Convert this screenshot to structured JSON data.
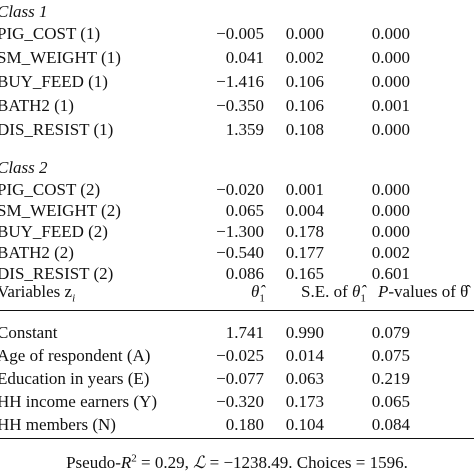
{
  "class1": {
    "title": "Class 1",
    "rows": [
      {
        "name": "PIG_COST (1)",
        "coef": "−0.005",
        "se": "0.000",
        "p": "0.000"
      },
      {
        "name": "SM_WEIGHT (1)",
        "coef": "0.041",
        "se": "0.002",
        "p": "0.000"
      },
      {
        "name": "BUY_FEED (1)",
        "coef": "−1.416",
        "se": "0.106",
        "p": "0.000"
      },
      {
        "name": "BATH2 (1)",
        "coef": "−0.350",
        "se": "0.106",
        "p": "0.001"
      },
      {
        "name": "DIS_RESIST (1)",
        "coef": "1.359",
        "se": "0.108",
        "p": "0.000"
      }
    ]
  },
  "class2": {
    "title": "Class 2",
    "rows": [
      {
        "name": "PIG_COST (2)",
        "coef": "−0.020",
        "se": "0.001",
        "p": "0.000"
      },
      {
        "name": "SM_WEIGHT (2)",
        "coef": "0.065",
        "se": "0.004",
        "p": "0.000"
      },
      {
        "name": "BUY_FEED (2)",
        "coef": "−1.300",
        "se": "0.178",
        "p": "0.000"
      },
      {
        "name": "BATH2 (2)",
        "coef": "−0.540",
        "se": "0.177",
        "p": "0.002"
      },
      {
        "name": "DIS_RESIST (2)",
        "coef": "0.086",
        "se": "0.165",
        "p": "0.601"
      }
    ]
  },
  "header": {
    "variables": "Variables z",
    "variables_sub": "i",
    "theta": "θ̂",
    "theta_sub": "1",
    "se_prefix": "S.E. of ",
    "se_theta": "θ̂",
    "se_theta_sub": "1",
    "p_label": "P",
    "p_suffix": "-values of θ̂"
  },
  "covariates": [
    {
      "name": "Constant",
      "coef": "1.741",
      "se": "0.990",
      "p": "0.079"
    },
    {
      "name": "Age of respondent (A)",
      "coef": "−0.025",
      "se": "0.014",
      "p": "0.075"
    },
    {
      "name": "Education in years (E)",
      "coef": "−0.077",
      "se": "0.063",
      "p": "0.219"
    },
    {
      "name": "HH income earners (Y)",
      "coef": "−0.320",
      "se": "0.173",
      "p": "0.065"
    },
    {
      "name": "HH members (N)",
      "coef": "0.180",
      "se": "0.104",
      "p": "0.084"
    }
  ],
  "footer": {
    "pseudo_prefix": "Pseudo-",
    "pseudo_r": "R",
    "pseudo_sup": "2",
    "pseudo_value": " = 0.29, ",
    "ll_symbol": "ℒ",
    "ll_value": " = −1238.49. Choices = 1596."
  }
}
